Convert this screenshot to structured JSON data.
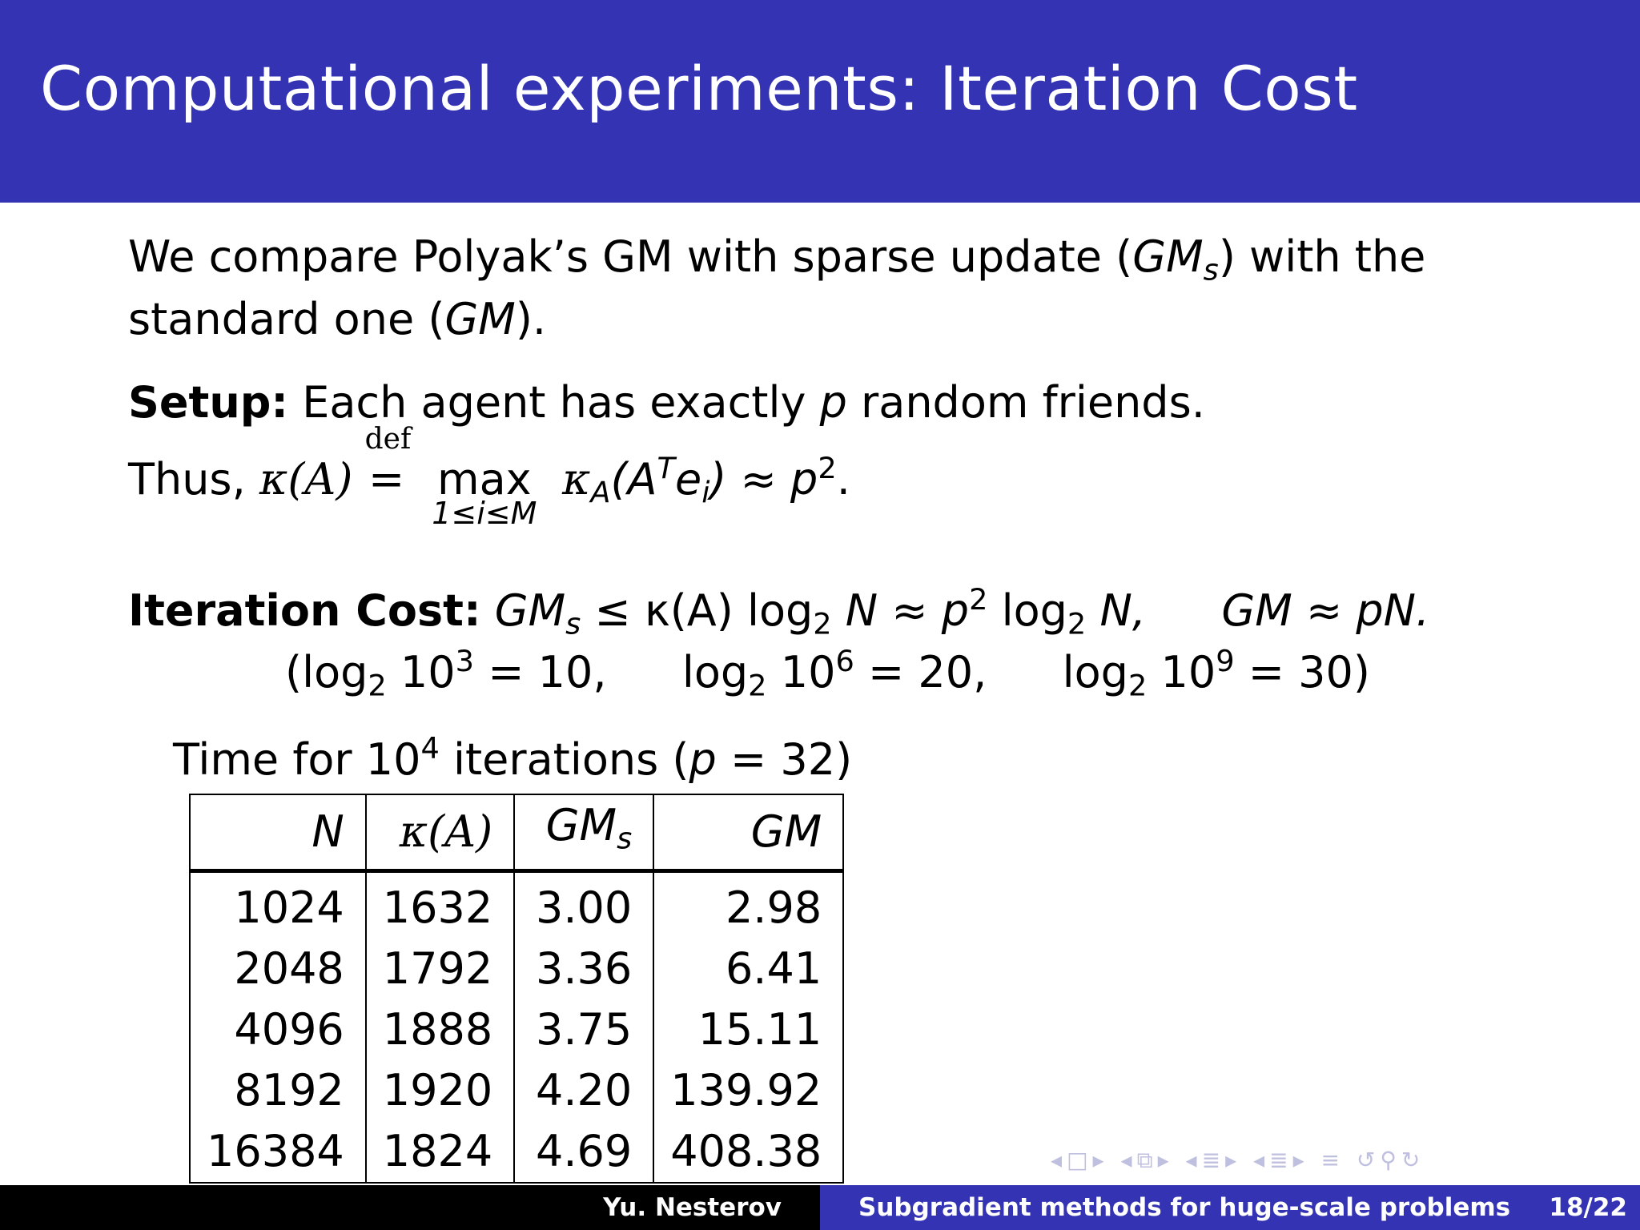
{
  "title": "Computational experiments: Iteration Cost",
  "intro": {
    "text1": "We compare Polyak’s GM with sparse update (",
    "gms": "GM",
    "gms_sub": "s",
    "text2": ") with the",
    "text3": "standard one (",
    "gm": "GM",
    "text4": ")."
  },
  "setup": {
    "label": "Setup:",
    "text": "Each agent has exactly",
    "p": "p",
    "text_end": "random friends."
  },
  "thus": {
    "lead": "Thus,",
    "kappa": "κ(A)",
    "def": "def",
    "eq": "=",
    "max": "max",
    "max_under": "1≤i≤M",
    "expr": "κ",
    "expr_sub": "A",
    "expr2": "(A",
    "expr_sup": "T",
    "expr3": "e",
    "expr3_sub": "i",
    "expr4": ") ≈ p",
    "expr4_sup": "2",
    "expr_end": "."
  },
  "iteration_cost": {
    "label": "Iteration Cost:",
    "gms": "GM",
    "gms_sub": "s",
    "part1": " ≤ κ(A) log",
    "sub2a": "2",
    "part2": " N ≈ p",
    "sup2": "2",
    "part3": " log",
    "sub2b": "2",
    "part4": " N,",
    "gm_expr": "GM ≈ pN."
  },
  "logs": {
    "a_pre": "(log",
    "a_sub": "2",
    "a_mid": " 10",
    "a_sup": "3",
    "a_post": " = 10,",
    "b_pre": "log",
    "b_sub": "2",
    "b_mid": " 10",
    "b_sup": "6",
    "b_post": " = 20,",
    "c_pre": "log",
    "c_sub": "2",
    "c_mid": " 10",
    "c_sup": "9",
    "c_post": " = 30)"
  },
  "table_caption": {
    "pre": "Time for 10",
    "sup": "4",
    "post": " iterations (",
    "p": "p",
    "end": " = 32)"
  },
  "table": {
    "headers": [
      "N",
      "κ(A)",
      "GM",
      "GM"
    ],
    "header_sub": "s",
    "rows": [
      [
        "1024",
        "1632",
        "3.00",
        "2.98"
      ],
      [
        "2048",
        "1792",
        "3.36",
        "6.41"
      ],
      [
        "4096",
        "1888",
        "3.75",
        "15.11"
      ],
      [
        "8192",
        "1920",
        "4.20",
        "139.92"
      ],
      [
        "16384",
        "1824",
        "4.69",
        "408.38"
      ]
    ]
  },
  "nav_icons": [
    "nav-prev-arrow",
    "nav-frame-icon",
    "nav-next-arrow",
    "nav-subsection-icon",
    "nav-section-icon",
    "nav-align-icon",
    "nav-search-icon"
  ],
  "footer": {
    "author": "Yu. Nesterov",
    "talk_title": "Subgradient methods for huge-scale problems",
    "page": "18/22"
  },
  "colors": {
    "header_bg": "#3333b3",
    "footer_left_bg": "#000000",
    "footer_right_bg": "#3333b3"
  }
}
